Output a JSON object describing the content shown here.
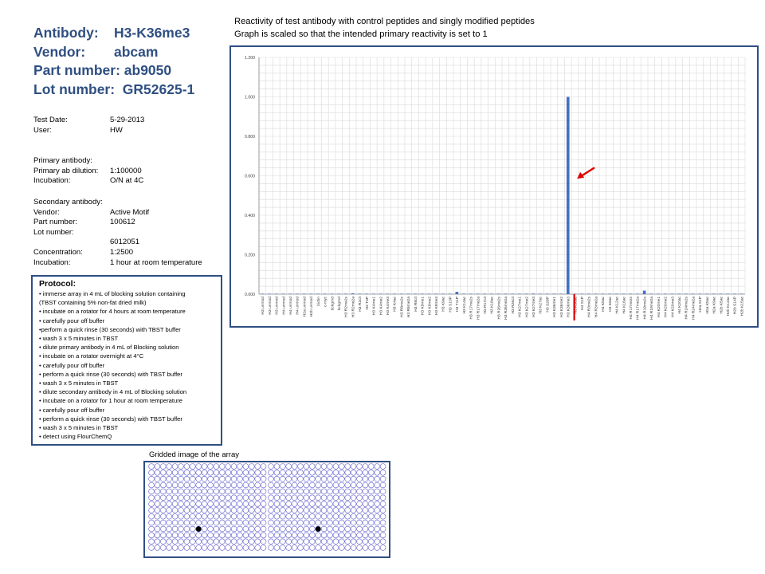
{
  "header": {
    "antibody_label": "Antibody:",
    "antibody_value": "H3-K36me3",
    "vendor_label": "Vendor:",
    "vendor_value": "abcam",
    "part_line": "Part number: ab9050",
    "lot_line": "Lot number:  GR52625-1"
  },
  "test_info": [
    {
      "key": "Test Date:",
      "value": "5-29-2013"
    },
    {
      "key": "User:",
      "value": "HW"
    }
  ],
  "primary": {
    "heading": "Primary antibody:",
    "rows": [
      {
        "key": "Primary ab dilution:",
        "value": "1:100000"
      },
      {
        "key": "Incubation:",
        "value": "O/N at 4C"
      }
    ]
  },
  "secondary": {
    "heading": "Secondary antibody:",
    "rows": [
      {
        "key": "Vendor:",
        "value": "Active Motif"
      },
      {
        "key": "Part number:",
        "value": "100612"
      },
      {
        "key": "Lot number:",
        "value": ""
      },
      {
        "key": "",
        "value": "6012051"
      },
      {
        "key": "Concentration:",
        "value": "1:2500"
      },
      {
        "key": "Incubation:",
        "value": "1 hour at room temperature"
      }
    ]
  },
  "protocol": {
    "title": "Protocol:",
    "items": [
      "• immerse array in 4 mL of blocking solution containing",
      "(TBST containing 5% non-fat dried milk)",
      "• incubate on a rotator for 4 hours at room temperature",
      "• carefully pour off buffer",
      "•perform a quick rinse (30 seconds) with TBST buffer",
      "• wash 3 x 5 minutes in TBST",
      "• dilute primary antibody in 4 mL of Blocking solution",
      "• incubate on a rotator overnight at 4°C",
      "•  carefully pour off buffer",
      "• perform a quick rinse (30 seconds) with TBST buffer",
      "• wash 3 x 5 minutes in TBST",
      "•  dilute secondary antibody in 4 mL of Blocking solution",
      "• incubate on a rotator for 1 hour at room temperature",
      "• carefully pour off buffer",
      "• perform a quick rinse (30 seconds) with TBST buffer",
      "• wash 3 x 5 minutes in TBST",
      "• detect using FlourChemQ"
    ]
  },
  "chart_title": {
    "line1": "Reactivity of test antibody with control peptides and singly modified peptides",
    "line2": "Graph is scaled so that the intended primary reactivity is set to 1"
  },
  "chart_data": {
    "type": "bar",
    "title": "",
    "xlabel": "",
    "ylabel": "",
    "ylim": [
      0,
      1.2
    ],
    "yticks": [
      "0.000",
      "0.200",
      "0.400",
      "0.600",
      "0.800",
      "1.000",
      "1.200"
    ],
    "grid": true,
    "bar_color": "#4472c4",
    "categories": [
      "H3 unmod",
      "H3 unmod",
      "H3 unmod",
      "H4 unmod",
      "H4 unmod",
      "H4 unmod",
      "H2a unmod",
      "H2b unmod",
      "biotin",
      "c-myc",
      "bckgrnd",
      "bckgrnd",
      "H3 R2me2s",
      "H3 R2me2a",
      "H3 R2cit",
      "H3 T3P",
      "H3 K4me1",
      "H3 K4me2",
      "H3 K4me3",
      "H3 K4ac",
      "H3 R8me2s",
      "H3 R8me2a",
      "H3 R8cit",
      "H3 K9me1",
      "H3 K9me2",
      "H3 K9me3",
      "H3 K9ac",
      "H3 S10P",
      "H3 T11P",
      "H3 K14ac",
      "H3 R17me2s",
      "H3 R17me2a",
      "H3 R17cit",
      "H3 K18ac",
      "H3 R26me2s",
      "H3 R26me2a",
      "H3 R26cit",
      "H3 K27me1",
      "H3 K27me2",
      "H3 K27me3",
      "H3 K27ac",
      "H3 S28P",
      "H3 K36me1",
      "H3 K36me2",
      "H3 K36me3",
      "H3 K36ac",
      "H4 S1P",
      "H4 R3me2s",
      "H4 R3me2a",
      "H4 K5ac",
      "H4 K8ac",
      "H4 K12ac",
      "H4 K16ac",
      "H4 R17me2s",
      "H4 R17me2a",
      "H4 R19me2s",
      "H4 R19me2a",
      "H4 K20me1",
      "H4 K20me2",
      "H4 K20me3",
      "H4 K20ac",
      "H4 R24me2s",
      "H4 R24me2a",
      "H2a S1P",
      "H2a K5ac",
      "H2a K9ac",
      "H2b K5ac",
      "H2b K12ac",
      "H2b S14P",
      "H2b K15ac"
    ],
    "values": [
      0,
      0,
      0,
      0,
      0,
      0,
      0,
      0,
      0,
      0,
      0,
      0,
      0,
      0.004,
      0,
      0,
      0,
      0,
      0,
      0,
      0,
      0,
      0,
      0,
      0,
      0,
      0,
      0,
      0.012,
      0,
      0,
      0,
      0,
      0,
      0,
      0,
      0,
      0,
      0,
      0.003,
      0,
      0,
      0,
      0,
      1.0,
      0,
      0,
      0,
      0,
      0,
      0,
      0,
      0,
      0,
      0,
      0.018,
      0,
      0,
      0,
      0,
      0,
      0,
      0,
      0,
      0,
      0,
      0,
      0,
      0,
      0
    ],
    "highlight_category": "H3 K36me3",
    "marker_color": "#e00000"
  },
  "grid_image": {
    "label": "Gridded image of the array",
    "circle_color": "#5050c8",
    "spot_color": "#000000"
  }
}
